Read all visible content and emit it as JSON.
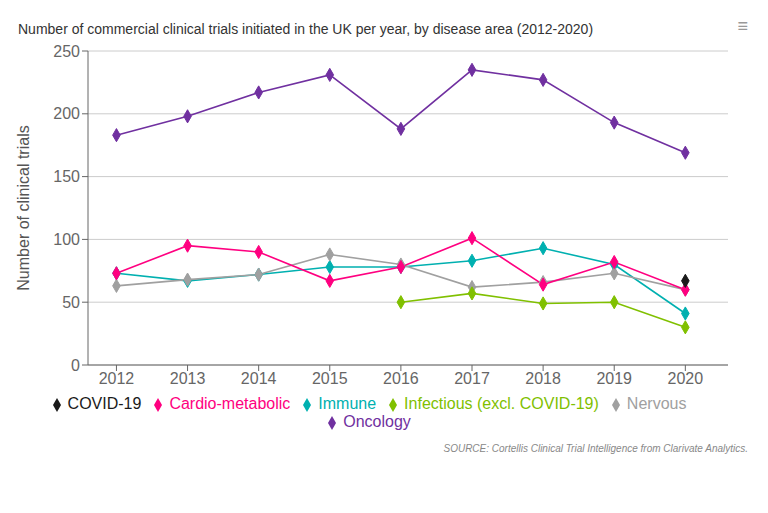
{
  "chart_data": {
    "type": "line",
    "title": "Number of commercial clinical trials initiated in the UK per year, by disease area (2012-2020)",
    "ylabel": "Number of clinical trials",
    "annotations": [
      "SOURCE: Cortellis Clinical Trial Intelligence from Clarivate Analytics.",
      "≡"
    ],
    "x": [
      2012,
      2013,
      2014,
      2015,
      2016,
      2017,
      2018,
      2019,
      2020
    ],
    "xlim": [
      2011.6,
      2020.6
    ],
    "xticks": [
      2012,
      2013,
      2014,
      2015,
      2016,
      2017,
      2018,
      2019,
      2020
    ],
    "ylim": [
      0,
      250
    ],
    "yticks": [
      0,
      50,
      100,
      150,
      200,
      250
    ],
    "grid": true,
    "legend": "bottom",
    "series": [
      {
        "name": "Oncology",
        "color": "#7030a0",
        "marker": "diamond",
        "values": [
          183,
          198,
          217,
          231,
          188,
          235,
          227,
          193,
          169
        ]
      },
      {
        "name": "Immune",
        "color": "#00b0b0",
        "marker": "diamond",
        "values": [
          73,
          67,
          72,
          78,
          78,
          83,
          93,
          80,
          41
        ]
      },
      {
        "name": "Nervous",
        "color": "#a0a0a0",
        "marker": "diamond",
        "values": [
          63,
          68,
          72,
          88,
          80,
          62,
          66,
          73,
          60
        ]
      },
      {
        "name": "Cardio-metabolic",
        "color": "#ff0080",
        "marker": "diamond",
        "values": [
          73,
          95,
          90,
          67,
          78,
          101,
          64,
          82,
          60
        ]
      },
      {
        "name": "Infectious (excl. COVID-19)",
        "color": "#80c000",
        "marker": "diamond",
        "values": [
          null,
          null,
          null,
          null,
          50,
          57,
          49,
          50,
          30
        ]
      },
      {
        "name": "COVID-19",
        "color": "#1a1a1a",
        "marker": "diamond",
        "values": [
          null,
          null,
          null,
          null,
          null,
          null,
          null,
          null,
          67
        ]
      }
    ]
  }
}
